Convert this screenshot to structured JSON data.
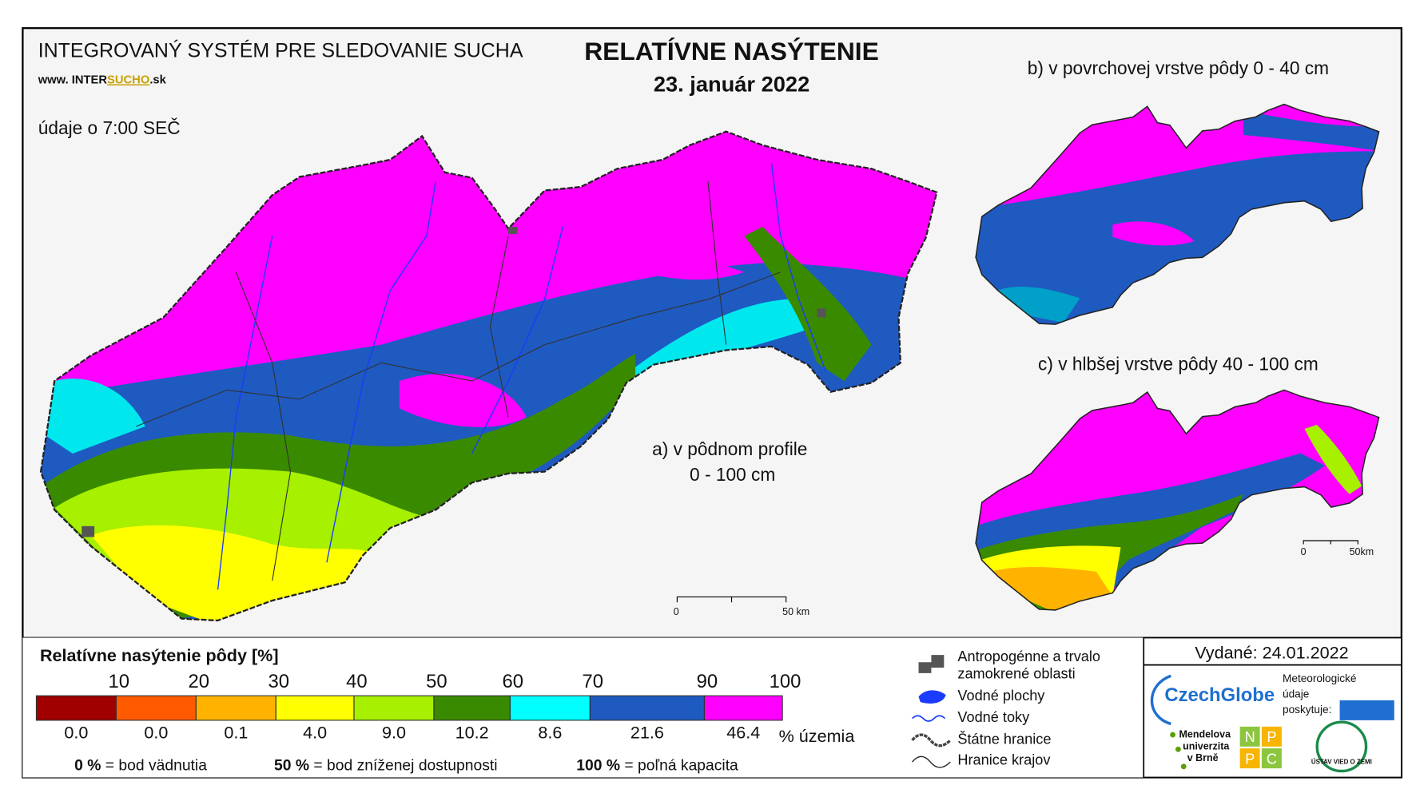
{
  "header": {
    "system": "INTEGROVANÝ SYSTÉM PRE SLEDOVANIE SUCHA",
    "url_prefix": "www. INTER",
    "url_mid": "SUCHO",
    "url_suffix": ".sk",
    "data_time": "údaje o 7:00 SEČ",
    "title": "RELATÍVNE NASÝTENIE",
    "date": "23. január 2022"
  },
  "maps": [
    {
      "label": "a) v pôdnom profile",
      "label_depth": "0 - 100 cm",
      "scale_start": "0",
      "scale_end": "50 km"
    },
    {
      "label": "b) v povrchovej vrstve pôdy 0 - 40 cm"
    },
    {
      "label": "c) v hlbšej vrstve pôdy 40 - 100 cm",
      "scale_start": "0",
      "scale_end": "50km"
    }
  ],
  "legend": {
    "title": "Relatívne nasýtenie pôdy [%]",
    "class_bounds": [
      10,
      20,
      30,
      40,
      50,
      60,
      70,
      90,
      100
    ],
    "classes": [
      {
        "color": "#a00000",
        "share": "0.0"
      },
      {
        "color": "#ff5a00",
        "share": "0.0"
      },
      {
        "color": "#ffb300",
        "share": "0.1"
      },
      {
        "color": "#ffff00",
        "share": "4.0"
      },
      {
        "color": "#a6f000",
        "share": "9.0"
      },
      {
        "color": "#3a8a00",
        "share": "10.2"
      },
      {
        "color": "#00ffff",
        "share": "8.6"
      },
      {
        "color": "#1e5ac0",
        "share": "21.6"
      },
      {
        "color": "#ff00ff",
        "share": "46.4"
      }
    ],
    "share_unit": "% územia",
    "notes": [
      {
        "key": "0 %",
        "text": "= bod vädnutia"
      },
      {
        "key": "50 %",
        "text": "= bod zníženej dostupnosti"
      },
      {
        "key": "100 %",
        "text": "= poľná kapacita"
      }
    ]
  },
  "map_legend": [
    {
      "line1": "Antropogénne a trvalo",
      "line2": "zamokrené oblasti"
    },
    {
      "line1": "Vodné plochy"
    },
    {
      "line1": "Vodné toky"
    },
    {
      "line1": "Štátne hranice"
    },
    {
      "line1": "Hranice krajov"
    }
  ],
  "issued": "Vydané: 24.01.2022",
  "logos": {
    "czechglobe": "CzechGlobe",
    "meteo1": "Meteorologické",
    "meteo2": "údaje",
    "meteo3": "poskytuje:",
    "mendel1": "Mendelova",
    "mendel2": "univerzita",
    "mendel3": "v Brně",
    "npc": [
      "N",
      "P",
      "P",
      "C"
    ],
    "uvz": "ÚSTAV VIED O ZEMI"
  }
}
